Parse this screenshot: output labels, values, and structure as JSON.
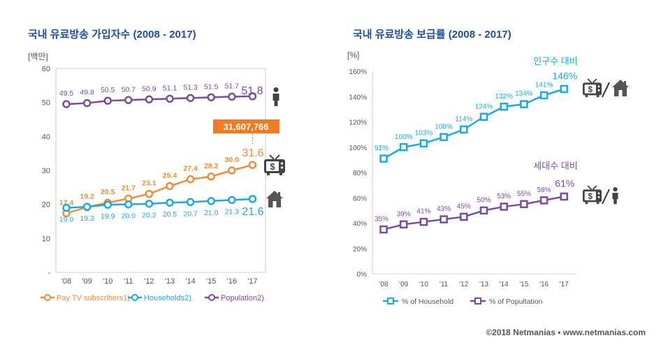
{
  "chart_data": [
    {
      "type": "line",
      "title": "국내 유료방송 가입자수 (2008 - 2017)",
      "ylabel": "[백만]",
      "ylim": [
        0,
        60
      ],
      "yticks": [
        "-",
        "10",
        "20",
        "30",
        "40",
        "50",
        "60"
      ],
      "categories": [
        "'08",
        "'09",
        "'10",
        "'11",
        "'12",
        "'13",
        "'14",
        "'15",
        "'16",
        "'17"
      ],
      "legend_position": "bottom",
      "series": [
        {
          "name": "Pay TV subscribers1)",
          "color": "#f08c3a",
          "values": [
            17.4,
            19.2,
            20.5,
            21.7,
            23.1,
            25.4,
            27.4,
            28.2,
            30.0,
            31.6
          ],
          "labels": [
            "17.4",
            "19.2",
            "20.5",
            "21.7",
            "23.1",
            "25.4",
            "27.4",
            "28.2",
            "30.0",
            "31.6"
          ]
        },
        {
          "name": "Households2)",
          "color": "#1ea8e0",
          "values": [
            19.0,
            19.3,
            19.9,
            20.0,
            20.2,
            20.5,
            20.7,
            21.0,
            21.3,
            21.6
          ],
          "labels": [
            "19.0",
            "19.3",
            "19.9",
            "20.0",
            "20.2",
            "20.5",
            "20.7",
            "21.0",
            "21.3",
            "21.6"
          ]
        },
        {
          "name": "Population2)",
          "color": "#7a4c9e",
          "values": [
            49.5,
            49.8,
            50.5,
            50.7,
            50.9,
            51.1,
            51.3,
            51.5,
            51.7,
            51.8
          ],
          "labels": [
            "49.5",
            "49.8",
            "50.5",
            "50.7",
            "50.9",
            "51.1",
            "51.3",
            "51.5",
            "51.7",
            "51.8"
          ]
        }
      ],
      "callout": "31,607,766",
      "callout_color": "#f07b22"
    },
    {
      "type": "line",
      "title": "국내 유료방송 보급률 (2008 - 2017)",
      "ylabel": "[%]",
      "ylim": [
        0,
        160
      ],
      "yticks": [
        "0%",
        "20%",
        "40%",
        "60%",
        "80%",
        "100%",
        "120%",
        "140%",
        "160%"
      ],
      "categories": [
        "'08",
        "'09",
        "'10",
        "'11",
        "'12",
        "'13",
        "'14",
        "'15",
        "'16",
        "'17"
      ],
      "legend_position": "bottom",
      "series": [
        {
          "name": "% of Household",
          "color": "#1ea8e0",
          "values": [
            91,
            100,
            103,
            108,
            114,
            124,
            132,
            134,
            141,
            146
          ],
          "labels": [
            "91%",
            "100%",
            "103%",
            "108%",
            "114%",
            "124%",
            "132%",
            "134%",
            "141%",
            "146%"
          ]
        },
        {
          "name": "% of Popultation",
          "color": "#7a4c9e",
          "values": [
            35,
            39,
            41,
            43,
            45,
            50,
            53,
            55,
            58,
            61
          ],
          "labels": [
            "35%",
            "39%",
            "41%",
            "43%",
            "45%",
            "50%",
            "53%",
            "55%",
            "58%",
            "61%"
          ]
        }
      ],
      "annotations": [
        "인구수 대비",
        "세대수 대비"
      ]
    }
  ],
  "footer": "©2018 Netmanias • www.netmanias.com",
  "icons": [
    "tv-dollar-icon",
    "house-icon",
    "person-icon"
  ]
}
